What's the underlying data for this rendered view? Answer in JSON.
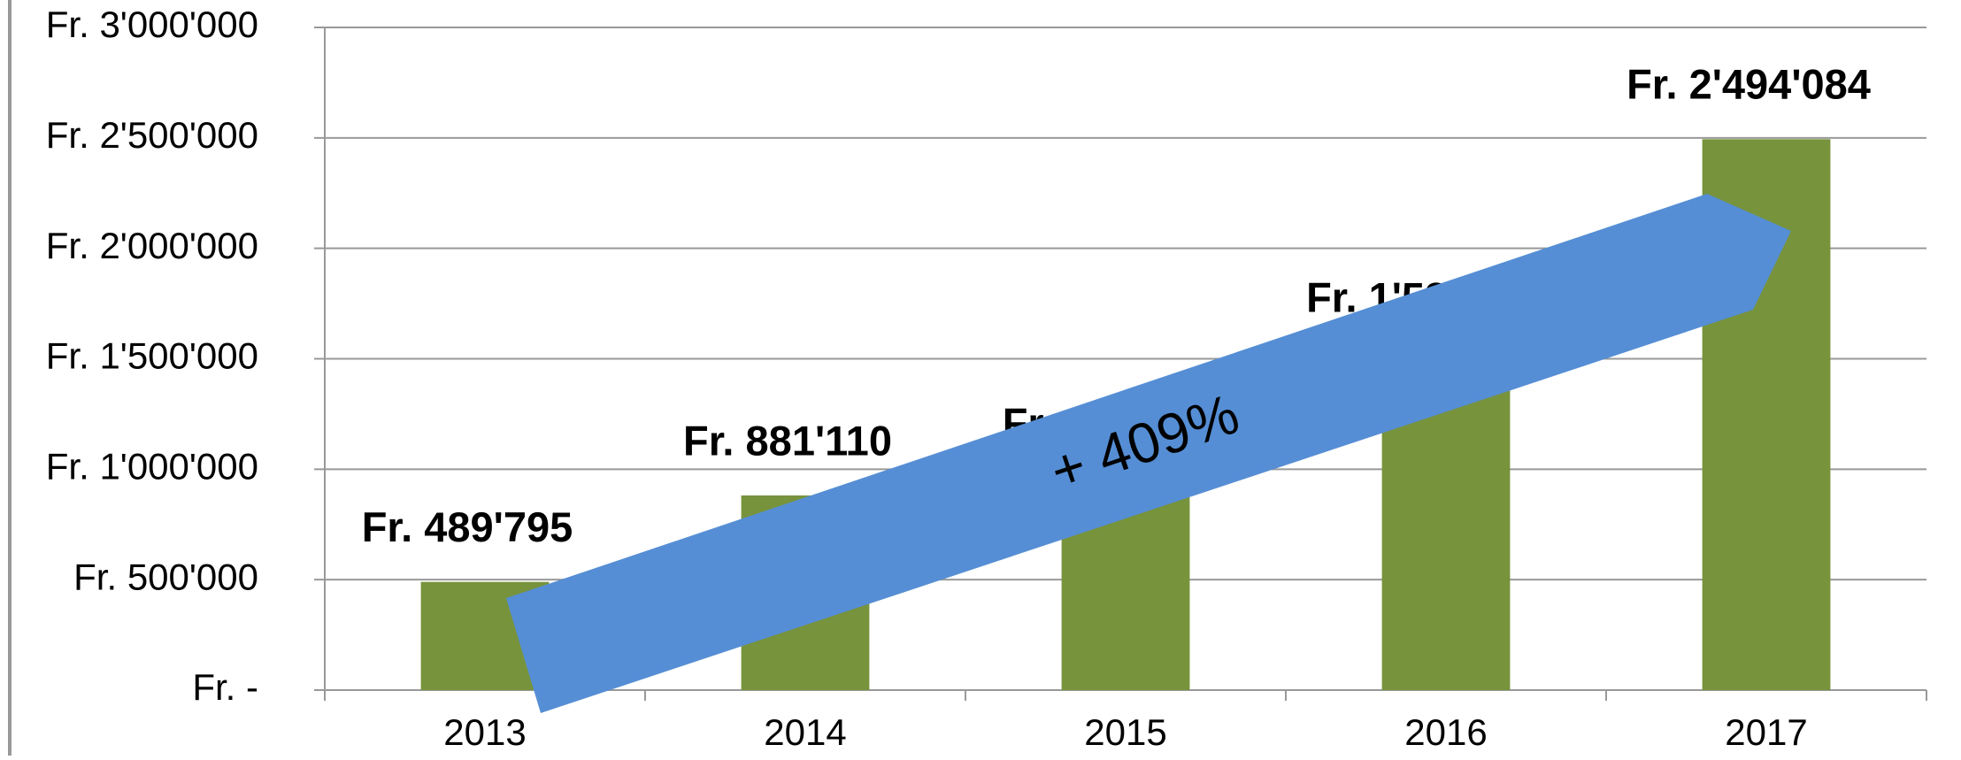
{
  "chart_data": {
    "type": "bar",
    "categories": [
      "2013",
      "2014",
      "2015",
      "2016",
      "2017"
    ],
    "values": [
      489795,
      881110,
      960000,
      1530000,
      2494084
    ],
    "value_labels": [
      "Fr. 489'795",
      "Fr. 881'110",
      "Fr. 960'000",
      "Fr. 1'530'000",
      "Fr. 2'494'084"
    ],
    "color": "#77933c",
    "ylim": [
      0,
      3000000
    ],
    "yticks": [
      {
        "value": 0,
        "label": "Fr. -"
      },
      {
        "value": 500000,
        "label": "Fr. 500'000"
      },
      {
        "value": 1000000,
        "label": "Fr. 1'000'000"
      },
      {
        "value": 1500000,
        "label": "Fr. 1'500'000"
      },
      {
        "value": 2000000,
        "label": "Fr. 2'000'000"
      },
      {
        "value": 2500000,
        "label": "Fr. 2'500'000"
      },
      {
        "value": 3000000,
        "label": "Fr. 3'000'000"
      }
    ],
    "grid": true,
    "annotation": "+ 409%"
  }
}
